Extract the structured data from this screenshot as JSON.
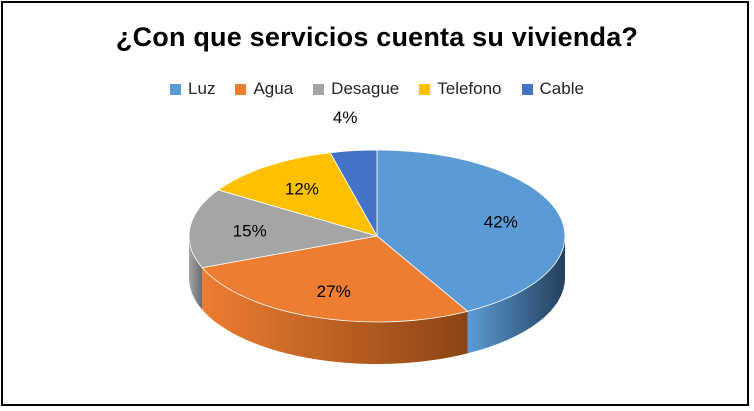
{
  "chart_data": {
    "type": "pie",
    "title": "¿Con que servicios cuenta su vivienda?",
    "legend_position": "top",
    "slices": [
      {
        "name": "Luz",
        "value": 42,
        "label": "42%",
        "color": "#5B9BD5",
        "side": "#24405C"
      },
      {
        "name": "Agua",
        "value": 27,
        "label": "27%",
        "color": "#ED7D31",
        "side": "#8A4414"
      },
      {
        "name": "Desague",
        "value": 15,
        "label": "15%",
        "color": "#A5A5A5",
        "side": "#6B6B6B"
      },
      {
        "name": "Telefono",
        "value": 12,
        "label": "12%",
        "color": "#FFC000",
        "side": "#9E7600"
      },
      {
        "name": "Cable",
        "value": 4,
        "label": "4%",
        "color": "#4472C4",
        "side": "#24417A"
      }
    ]
  }
}
